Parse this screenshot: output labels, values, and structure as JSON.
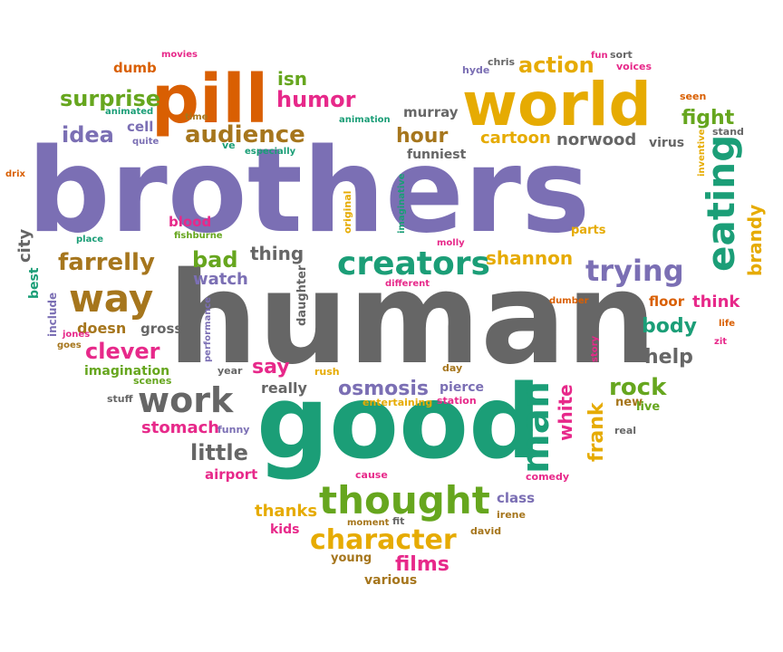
{
  "palette": {
    "purple": "#7b6fb4",
    "gray": "#666666",
    "teal": "#1b9e77",
    "green": "#66a61e",
    "orange": "#d95f02",
    "gold": "#e6ab02",
    "pink": "#e7298a",
    "brown": "#a6761d"
  },
  "words": [
    {
      "text": "brothers",
      "color": "purple"
    },
    {
      "text": "human",
      "color": "gray"
    },
    {
      "text": "good",
      "color": "teal"
    },
    {
      "text": "world",
      "color": "gold"
    },
    {
      "text": "pill",
      "color": "orange"
    },
    {
      "text": "thought",
      "color": "green"
    },
    {
      "text": "creators",
      "color": "teal"
    },
    {
      "text": "eating",
      "color": "teal"
    },
    {
      "text": "work",
      "color": "gray"
    },
    {
      "text": "way",
      "color": "brown"
    },
    {
      "text": "man",
      "color": "teal"
    },
    {
      "text": "character",
      "color": "gold"
    },
    {
      "text": "trying",
      "color": "purple"
    },
    {
      "text": "surprise",
      "color": "green"
    },
    {
      "text": "audience",
      "color": "brown"
    },
    {
      "text": "farrelly",
      "color": "brown"
    },
    {
      "text": "action",
      "color": "gold"
    },
    {
      "text": "humor",
      "color": "pink"
    },
    {
      "text": "idea",
      "color": "purple"
    },
    {
      "text": "bad",
      "color": "green"
    },
    {
      "text": "clever",
      "color": "pink"
    },
    {
      "text": "hour",
      "color": "brown"
    },
    {
      "text": "shannon",
      "color": "gold"
    },
    {
      "text": "fight",
      "color": "green"
    },
    {
      "text": "body",
      "color": "teal"
    },
    {
      "text": "rock",
      "color": "green"
    },
    {
      "text": "little",
      "color": "gray"
    },
    {
      "text": "osmosis",
      "color": "purple"
    },
    {
      "text": "brandy",
      "color": "gold"
    },
    {
      "text": "films",
      "color": "pink"
    },
    {
      "text": "frank",
      "color": "gold"
    },
    {
      "text": "white",
      "color": "pink"
    },
    {
      "text": "help",
      "color": "gray"
    },
    {
      "text": "say",
      "color": "pink"
    },
    {
      "text": "thing",
      "color": "gray"
    },
    {
      "text": "cartoon",
      "color": "gold"
    },
    {
      "text": "norwood",
      "color": "gray"
    },
    {
      "text": "isn",
      "color": "green"
    },
    {
      "text": "thanks",
      "color": "gold"
    },
    {
      "text": "stomach",
      "color": "pink"
    },
    {
      "text": "watch",
      "color": "purple"
    },
    {
      "text": "city",
      "color": "gray"
    },
    {
      "text": "think",
      "color": "pink"
    },
    {
      "text": "floor",
      "color": "orange"
    },
    {
      "text": "really",
      "color": "gray"
    },
    {
      "text": "class",
      "color": "purple"
    },
    {
      "text": "doesn",
      "color": "brown"
    },
    {
      "text": "gross",
      "color": "gray"
    },
    {
      "text": "imagination",
      "color": "green"
    },
    {
      "text": "best",
      "color": "teal"
    },
    {
      "text": "pierce",
      "color": "purple"
    },
    {
      "text": "murray",
      "color": "gray"
    },
    {
      "text": "funniest",
      "color": "gray"
    },
    {
      "text": "cell",
      "color": "purple"
    },
    {
      "text": "virus",
      "color": "gray"
    },
    {
      "text": "kids",
      "color": "pink"
    },
    {
      "text": "young",
      "color": "brown"
    },
    {
      "text": "various",
      "color": "brown"
    },
    {
      "text": "airport",
      "color": "pink"
    },
    {
      "text": "dumb",
      "color": "orange"
    },
    {
      "text": "blood",
      "color": "pink"
    },
    {
      "text": "new",
      "color": "brown"
    },
    {
      "text": "live",
      "color": "green"
    },
    {
      "text": "include",
      "color": "purple"
    },
    {
      "text": "parts",
      "color": "gold"
    },
    {
      "text": "daughter",
      "color": "gray"
    },
    {
      "text": "original",
      "color": "gold"
    },
    {
      "text": "performance",
      "color": "purple"
    },
    {
      "text": "imaginative",
      "color": "teal"
    },
    {
      "text": "inventive",
      "color": "gold"
    },
    {
      "text": "fishburne",
      "color": "green"
    },
    {
      "text": "movies",
      "color": "pink"
    },
    {
      "text": "hyde",
      "color": "purple"
    },
    {
      "text": "chris",
      "color": "gray"
    },
    {
      "text": "sort",
      "color": "gray"
    },
    {
      "text": "voices",
      "color": "pink"
    },
    {
      "text": "fun",
      "color": "pink"
    },
    {
      "text": "seen",
      "color": "orange"
    },
    {
      "text": "stand",
      "color": "gray"
    },
    {
      "text": "animated",
      "color": "teal"
    },
    {
      "text": "quite",
      "color": "purple"
    },
    {
      "text": "time",
      "color": "brown"
    },
    {
      "text": "animation",
      "color": "teal"
    },
    {
      "text": "ve",
      "color": "teal"
    },
    {
      "text": "especially",
      "color": "teal"
    },
    {
      "text": "drix",
      "color": "orange"
    },
    {
      "text": "place",
      "color": "teal"
    },
    {
      "text": "molly",
      "color": "pink"
    },
    {
      "text": "different",
      "color": "pink"
    },
    {
      "text": "dumber",
      "color": "orange"
    },
    {
      "text": "life",
      "color": "orange"
    },
    {
      "text": "zit",
      "color": "pink"
    },
    {
      "text": "jones",
      "color": "pink"
    },
    {
      "text": "goes",
      "color": "brown"
    },
    {
      "text": "story",
      "color": "pink"
    },
    {
      "text": "day",
      "color": "brown"
    },
    {
      "text": "year",
      "color": "gray"
    },
    {
      "text": "rush",
      "color": "gold"
    },
    {
      "text": "scenes",
      "color": "green"
    },
    {
      "text": "stuff",
      "color": "gray"
    },
    {
      "text": "entertaining",
      "color": "gold"
    },
    {
      "text": "station",
      "color": "pink"
    },
    {
      "text": "funny",
      "color": "purple"
    },
    {
      "text": "real",
      "color": "gray"
    },
    {
      "text": "cause",
      "color": "pink"
    },
    {
      "text": "comedy",
      "color": "pink"
    },
    {
      "text": "moment",
      "color": "brown"
    },
    {
      "text": "fit",
      "color": "gray"
    },
    {
      "text": "irene",
      "color": "brown"
    },
    {
      "text": "david",
      "color": "brown"
    }
  ]
}
